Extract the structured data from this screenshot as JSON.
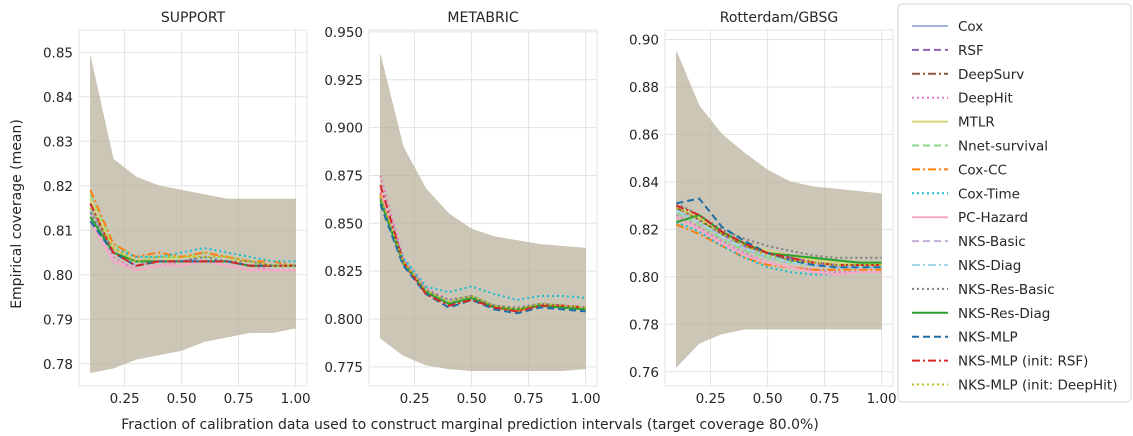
{
  "figure": {
    "ylabel": "Empirical coverage (mean)",
    "xlabel": "Fraction of calibration data used to construct marginal prediction intervals (target coverage 80.0%)"
  },
  "legend": {
    "placement": "right, outside plots",
    "entries": [
      {
        "name": "Cox",
        "color": "#a1b4e0",
        "dash": "solid"
      },
      {
        "name": "RSF",
        "color": "#8e5fb5",
        "dash": "dashed"
      },
      {
        "name": "DeepSurv",
        "color": "#8b5a3c",
        "dash": "dashdot"
      },
      {
        "name": "DeepHit",
        "color": "#e377c2",
        "dash": "dotted"
      },
      {
        "name": "MTLR",
        "color": "#d4d47a",
        "dash": "solid"
      },
      {
        "name": "Nnet-survival",
        "color": "#8ed88e",
        "dash": "dashed"
      },
      {
        "name": "Cox-CC",
        "color": "#ff7f0e",
        "dash": "dashdot"
      },
      {
        "name": "Cox-Time",
        "color": "#17becf",
        "dash": "dotted"
      },
      {
        "name": "PC-Hazard",
        "color": "#f7a8c8",
        "dash": "solid"
      },
      {
        "name": "NKS-Basic",
        "color": "#c3aed6",
        "dash": "dashed"
      },
      {
        "name": "NKS-Diag",
        "color": "#a6d8ea",
        "dash": "dashdot"
      },
      {
        "name": "NKS-Res-Basic",
        "color": "#7f7f7f",
        "dash": "dotted"
      },
      {
        "name": "NKS-Res-Diag",
        "color": "#2ca02c",
        "dash": "solid"
      },
      {
        "name": "NKS-MLP",
        "color": "#1f6fa8",
        "dash": "dashed"
      },
      {
        "name": "NKS-MLP (init: RSF)",
        "color": "#d62728",
        "dash": "dashdot"
      },
      {
        "name": "NKS-MLP (init: DeepHit)",
        "color": "#bcbd22",
        "dash": "dotted"
      }
    ]
  },
  "chart_data": [
    {
      "type": "line",
      "title": "SUPPORT",
      "x": [
        0.1,
        0.2,
        0.3,
        0.4,
        0.5,
        0.6,
        0.7,
        0.8,
        0.9,
        1.0
      ],
      "xticks": [
        "0.25",
        "0.50",
        "0.75",
        "1.00"
      ],
      "xlim": [
        0.05,
        1.05
      ],
      "ylim": [
        0.775,
        0.855
      ],
      "yticks": [
        "0.78",
        "0.79",
        "0.80",
        "0.81",
        "0.82",
        "0.83",
        "0.84",
        "0.85"
      ],
      "band": {
        "upper": [
          0.849,
          0.826,
          0.822,
          0.82,
          0.819,
          0.818,
          0.817,
          0.817,
          0.817,
          0.817
        ],
        "lower": [
          0.778,
          0.779,
          0.781,
          0.782,
          0.783,
          0.785,
          0.786,
          0.787,
          0.787,
          0.788
        ]
      },
      "series": [
        {
          "name": "Cox",
          "values": [
            0.815,
            0.805,
            0.802,
            0.803,
            0.803,
            0.804,
            0.803,
            0.802,
            0.802,
            0.802
          ]
        },
        {
          "name": "RSF",
          "values": [
            0.814,
            0.806,
            0.803,
            0.803,
            0.803,
            0.804,
            0.803,
            0.802,
            0.802,
            0.802
          ]
        },
        {
          "name": "DeepSurv",
          "values": [
            0.816,
            0.806,
            0.803,
            0.803,
            0.803,
            0.803,
            0.803,
            0.802,
            0.802,
            0.802
          ]
        },
        {
          "name": "DeepHit",
          "values": [
            0.814,
            0.804,
            0.801,
            0.802,
            0.803,
            0.803,
            0.803,
            0.802,
            0.801,
            0.801
          ]
        },
        {
          "name": "MTLR",
          "values": [
            0.817,
            0.806,
            0.803,
            0.803,
            0.804,
            0.804,
            0.803,
            0.803,
            0.802,
            0.802
          ]
        },
        {
          "name": "Nnet-survival",
          "values": [
            0.818,
            0.807,
            0.804,
            0.804,
            0.804,
            0.805,
            0.804,
            0.803,
            0.802,
            0.802
          ]
        },
        {
          "name": "Cox-CC",
          "values": [
            0.819,
            0.807,
            0.804,
            0.805,
            0.804,
            0.805,
            0.804,
            0.803,
            0.803,
            0.802
          ]
        },
        {
          "name": "Cox-Time",
          "values": [
            0.815,
            0.806,
            0.804,
            0.804,
            0.805,
            0.806,
            0.805,
            0.804,
            0.803,
            0.803
          ]
        },
        {
          "name": "PC-Hazard",
          "values": [
            0.812,
            0.803,
            0.801,
            0.802,
            0.802,
            0.803,
            0.802,
            0.801,
            0.801,
            0.801
          ]
        },
        {
          "name": "NKS-Basic",
          "values": [
            0.814,
            0.805,
            0.802,
            0.803,
            0.803,
            0.803,
            0.803,
            0.802,
            0.802,
            0.802
          ]
        },
        {
          "name": "NKS-Diag",
          "values": [
            0.813,
            0.805,
            0.803,
            0.803,
            0.803,
            0.804,
            0.803,
            0.802,
            0.802,
            0.802
          ]
        },
        {
          "name": "NKS-Res-Basic",
          "values": [
            0.814,
            0.805,
            0.803,
            0.803,
            0.803,
            0.804,
            0.803,
            0.803,
            0.802,
            0.802
          ]
        },
        {
          "name": "NKS-Res-Diag",
          "values": [
            0.813,
            0.805,
            0.803,
            0.803,
            0.803,
            0.803,
            0.803,
            0.802,
            0.802,
            0.802
          ]
        },
        {
          "name": "NKS-MLP",
          "values": [
            0.812,
            0.805,
            0.802,
            0.803,
            0.803,
            0.803,
            0.803,
            0.802,
            0.802,
            0.802
          ]
        },
        {
          "name": "NKS-MLP (init: RSF)",
          "values": [
            0.816,
            0.805,
            0.802,
            0.803,
            0.803,
            0.803,
            0.803,
            0.802,
            0.802,
            0.802
          ]
        },
        {
          "name": "NKS-MLP (init: DeepHit)",
          "values": [
            0.815,
            0.806,
            0.803,
            0.804,
            0.804,
            0.804,
            0.804,
            0.803,
            0.802,
            0.802
          ]
        }
      ]
    },
    {
      "type": "line",
      "title": "METABRIC",
      "x": [
        0.1,
        0.2,
        0.3,
        0.4,
        0.5,
        0.6,
        0.7,
        0.8,
        0.9,
        1.0
      ],
      "xticks": [
        "0.25",
        "0.50",
        "0.75",
        "1.00"
      ],
      "xlim": [
        0.05,
        1.05
      ],
      "ylim": [
        0.765,
        0.951
      ],
      "yticks": [
        "0.775",
        "0.800",
        "0.825",
        "0.850",
        "0.875",
        "0.900",
        "0.925",
        "0.950"
      ],
      "band": {
        "upper": [
          0.938,
          0.89,
          0.868,
          0.855,
          0.847,
          0.843,
          0.841,
          0.839,
          0.838,
          0.837
        ],
        "lower": [
          0.79,
          0.781,
          0.776,
          0.774,
          0.773,
          0.773,
          0.773,
          0.773,
          0.773,
          0.774
        ]
      },
      "series": [
        {
          "name": "Cox",
          "values": [
            0.863,
            0.829,
            0.815,
            0.809,
            0.811,
            0.806,
            0.805,
            0.807,
            0.807,
            0.806
          ]
        },
        {
          "name": "RSF",
          "values": [
            0.864,
            0.83,
            0.815,
            0.809,
            0.812,
            0.807,
            0.805,
            0.808,
            0.807,
            0.806
          ]
        },
        {
          "name": "DeepSurv",
          "values": [
            0.866,
            0.83,
            0.814,
            0.808,
            0.811,
            0.806,
            0.804,
            0.807,
            0.806,
            0.805
          ]
        },
        {
          "name": "DeepHit",
          "values": [
            0.875,
            0.832,
            0.816,
            0.81,
            0.812,
            0.807,
            0.805,
            0.808,
            0.807,
            0.806
          ]
        },
        {
          "name": "MTLR",
          "values": [
            0.864,
            0.829,
            0.814,
            0.809,
            0.811,
            0.806,
            0.805,
            0.807,
            0.806,
            0.806
          ]
        },
        {
          "name": "Nnet-survival",
          "values": [
            0.863,
            0.83,
            0.815,
            0.809,
            0.812,
            0.807,
            0.805,
            0.808,
            0.807,
            0.806
          ]
        },
        {
          "name": "Cox-CC",
          "values": [
            0.865,
            0.829,
            0.813,
            0.808,
            0.811,
            0.806,
            0.804,
            0.807,
            0.806,
            0.805
          ]
        },
        {
          "name": "Cox-Time",
          "values": [
            0.863,
            0.832,
            0.817,
            0.814,
            0.817,
            0.813,
            0.81,
            0.812,
            0.812,
            0.811
          ]
        },
        {
          "name": "PC-Hazard",
          "values": [
            0.868,
            0.828,
            0.813,
            0.808,
            0.811,
            0.806,
            0.805,
            0.807,
            0.806,
            0.806
          ]
        },
        {
          "name": "NKS-Basic",
          "values": [
            0.863,
            0.829,
            0.814,
            0.809,
            0.811,
            0.806,
            0.805,
            0.807,
            0.806,
            0.805
          ]
        },
        {
          "name": "NKS-Diag",
          "values": [
            0.862,
            0.829,
            0.814,
            0.808,
            0.811,
            0.806,
            0.805,
            0.807,
            0.806,
            0.805
          ]
        },
        {
          "name": "NKS-Res-Basic",
          "values": [
            0.863,
            0.83,
            0.815,
            0.81,
            0.812,
            0.807,
            0.806,
            0.808,
            0.807,
            0.806
          ]
        },
        {
          "name": "NKS-Res-Diag",
          "values": [
            0.862,
            0.829,
            0.814,
            0.808,
            0.811,
            0.806,
            0.805,
            0.807,
            0.806,
            0.805
          ]
        },
        {
          "name": "NKS-MLP",
          "values": [
            0.86,
            0.828,
            0.813,
            0.806,
            0.81,
            0.805,
            0.803,
            0.806,
            0.805,
            0.804
          ]
        },
        {
          "name": "NKS-MLP (init: RSF)",
          "values": [
            0.87,
            0.83,
            0.813,
            0.807,
            0.81,
            0.806,
            0.804,
            0.807,
            0.807,
            0.806
          ]
        },
        {
          "name": "NKS-MLP (init: DeepHit)",
          "values": [
            0.864,
            0.83,
            0.815,
            0.809,
            0.812,
            0.807,
            0.805,
            0.808,
            0.807,
            0.806
          ]
        }
      ]
    },
    {
      "type": "line",
      "title": "Rotterdam/GBSG",
      "x": [
        0.1,
        0.2,
        0.3,
        0.4,
        0.5,
        0.6,
        0.7,
        0.8,
        0.9,
        1.0
      ],
      "xticks": [
        "0.25",
        "0.50",
        "0.75",
        "1.00"
      ],
      "xlim": [
        0.05,
        1.05
      ],
      "ylim": [
        0.754,
        0.904
      ],
      "yticks": [
        "0.76",
        "0.78",
        "0.80",
        "0.82",
        "0.84",
        "0.86",
        "0.88",
        "0.90"
      ],
      "band": {
        "upper": [
          0.895,
          0.872,
          0.86,
          0.852,
          0.845,
          0.84,
          0.838,
          0.837,
          0.836,
          0.835
        ],
        "lower": [
          0.762,
          0.772,
          0.776,
          0.778,
          0.778,
          0.778,
          0.778,
          0.778,
          0.778,
          0.778
        ]
      },
      "series": [
        {
          "name": "Cox",
          "values": [
            0.828,
            0.823,
            0.817,
            0.812,
            0.808,
            0.806,
            0.805,
            0.804,
            0.804,
            0.804
          ]
        },
        {
          "name": "RSF",
          "values": [
            0.829,
            0.825,
            0.818,
            0.813,
            0.81,
            0.808,
            0.806,
            0.805,
            0.805,
            0.805
          ]
        },
        {
          "name": "DeepSurv",
          "values": [
            0.829,
            0.824,
            0.818,
            0.813,
            0.81,
            0.807,
            0.806,
            0.805,
            0.805,
            0.804
          ]
        },
        {
          "name": "DeepHit",
          "values": [
            0.826,
            0.821,
            0.815,
            0.81,
            0.806,
            0.804,
            0.803,
            0.802,
            0.802,
            0.802
          ]
        },
        {
          "name": "MTLR",
          "values": [
            0.83,
            0.825,
            0.819,
            0.814,
            0.811,
            0.809,
            0.807,
            0.806,
            0.806,
            0.805
          ]
        },
        {
          "name": "Nnet-survival",
          "values": [
            0.827,
            0.822,
            0.816,
            0.811,
            0.808,
            0.806,
            0.805,
            0.804,
            0.804,
            0.804
          ]
        },
        {
          "name": "Cox-CC",
          "values": [
            0.822,
            0.818,
            0.813,
            0.808,
            0.805,
            0.804,
            0.803,
            0.803,
            0.803,
            0.803
          ]
        },
        {
          "name": "Cox-Time",
          "values": [
            0.823,
            0.819,
            0.813,
            0.808,
            0.804,
            0.802,
            0.801,
            0.801,
            0.802,
            0.802
          ]
        },
        {
          "name": "PC-Hazard",
          "values": [
            0.825,
            0.82,
            0.814,
            0.809,
            0.806,
            0.804,
            0.802,
            0.801,
            0.802,
            0.802
          ]
        },
        {
          "name": "NKS-Basic",
          "values": [
            0.828,
            0.823,
            0.817,
            0.812,
            0.809,
            0.807,
            0.805,
            0.804,
            0.804,
            0.804
          ]
        },
        {
          "name": "NKS-Diag",
          "values": [
            0.828,
            0.823,
            0.817,
            0.812,
            0.809,
            0.806,
            0.805,
            0.804,
            0.804,
            0.804
          ]
        },
        {
          "name": "NKS-Res-Basic",
          "values": [
            0.831,
            0.826,
            0.82,
            0.816,
            0.813,
            0.811,
            0.809,
            0.808,
            0.808,
            0.808
          ]
        },
        {
          "name": "NKS-Res-Diag",
          "values": [
            0.823,
            0.826,
            0.819,
            0.814,
            0.81,
            0.809,
            0.808,
            0.807,
            0.806,
            0.806
          ]
        },
        {
          "name": "NKS-MLP",
          "values": [
            0.831,
            0.833,
            0.821,
            0.815,
            0.81,
            0.807,
            0.805,
            0.804,
            0.804,
            0.804
          ]
        },
        {
          "name": "NKS-MLP (init: RSF)",
          "values": [
            0.83,
            0.826,
            0.819,
            0.814,
            0.81,
            0.808,
            0.806,
            0.805,
            0.805,
            0.805
          ]
        },
        {
          "name": "NKS-MLP (init: DeepHit)",
          "values": [
            0.829,
            0.824,
            0.818,
            0.813,
            0.809,
            0.807,
            0.806,
            0.805,
            0.805,
            0.805
          ]
        }
      ]
    }
  ]
}
